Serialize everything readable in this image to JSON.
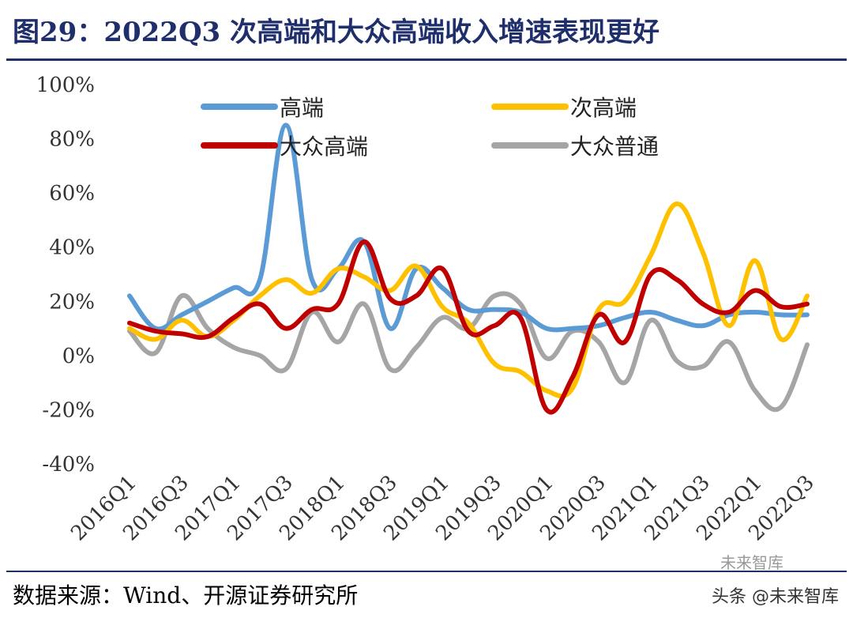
{
  "header": {
    "title": "图29：2022Q3 次高端和大众高端收入增速表现更好"
  },
  "footer": {
    "source": "数据来源：Wind、开源证券研究所",
    "watermark": "头条 @未来智库",
    "watermark_logo": "未来智库"
  },
  "chart_data": {
    "type": "line",
    "title": "",
    "xlabel": "",
    "ylabel": "",
    "ylim": [
      -40,
      100
    ],
    "yticks": [
      -40,
      -20,
      0,
      20,
      40,
      60,
      80,
      100
    ],
    "ytick_labels": [
      "-40%",
      "-20%",
      "0%",
      "20%",
      "40%",
      "60%",
      "80%",
      "100%"
    ],
    "grid": false,
    "legend_position": "top",
    "x": [
      "2016Q1",
      "2016Q2",
      "2016Q3",
      "2016Q4",
      "2017Q1",
      "2017Q2",
      "2017Q3",
      "2017Q4",
      "2018Q1",
      "2018Q2",
      "2018Q3",
      "2018Q4",
      "2019Q1",
      "2019Q2",
      "2019Q3",
      "2019Q4",
      "2020Q1",
      "2020Q2",
      "2020Q3",
      "2020Q4",
      "2021Q1",
      "2021Q2",
      "2021Q3",
      "2021Q4",
      "2022Q1",
      "2022Q2",
      "2022Q3"
    ],
    "x_tick_labels": [
      "2016Q1",
      "2016Q3",
      "2017Q1",
      "2017Q3",
      "2018Q1",
      "2018Q3",
      "2019Q1",
      "2019Q3",
      "2020Q1",
      "2020Q3",
      "2021Q1",
      "2021Q3",
      "2022Q1",
      "2022Q3"
    ],
    "series": [
      {
        "name": "高端",
        "color": "#5b9bd5",
        "values": [
          22,
          10,
          15,
          20,
          25,
          28,
          85,
          28,
          32,
          42,
          10,
          32,
          25,
          17,
          17,
          16,
          10,
          10,
          11,
          14,
          16,
          13,
          11,
          15,
          16,
          15,
          15
        ]
      },
      {
        "name": "次高端",
        "color": "#ffc000",
        "values": [
          10,
          6,
          13,
          7,
          13,
          22,
          28,
          23,
          32,
          29,
          24,
          33,
          18,
          12,
          -3,
          -6,
          -13,
          -12,
          17,
          20,
          37,
          56,
          38,
          11,
          35,
          6,
          22
        ]
      },
      {
        "name": "大众高端",
        "color": "#c00000",
        "values": [
          12,
          9,
          8,
          7,
          14,
          19,
          10,
          17,
          19,
          42,
          21,
          22,
          32,
          9,
          11,
          14,
          -20,
          -8,
          15,
          5,
          30,
          28,
          19,
          16,
          24,
          18,
          19
        ]
      },
      {
        "name": "大众普通",
        "color": "#a5a5a5",
        "values": [
          9,
          1,
          22,
          10,
          3,
          0,
          -5,
          16,
          5,
          19,
          -5,
          3,
          14,
          10,
          22,
          19,
          -1,
          9,
          5,
          -10,
          13,
          -2,
          -4,
          5,
          -13,
          -19,
          4
        ]
      }
    ]
  }
}
